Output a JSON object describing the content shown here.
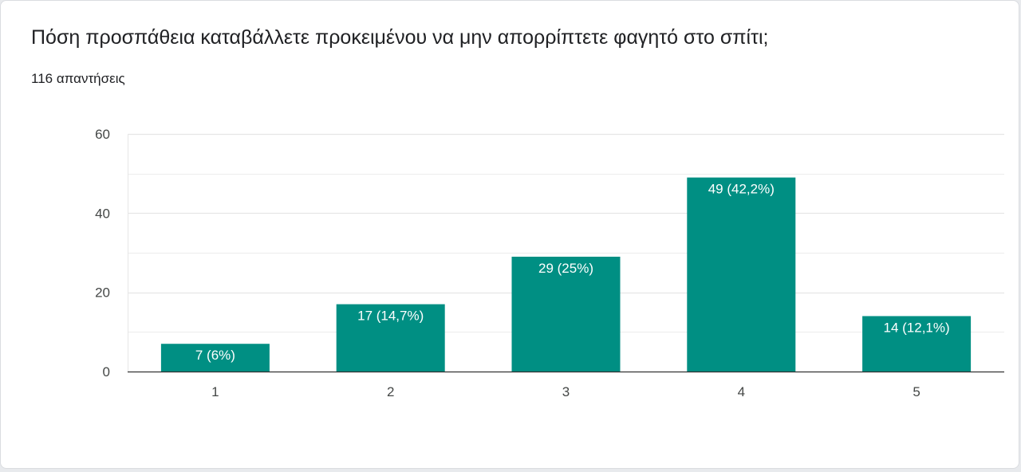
{
  "question": {
    "title": "Πόση προσπάθεια καταβάλλετε προκειμένου να μην απορρίπτετε φαγητό στο σπίτι;",
    "response_count": "116 απαντήσεις"
  },
  "colors": {
    "bar": "#008f83",
    "gridline": "#e6e6e6",
    "axis": "#333333"
  },
  "chart_data": {
    "type": "bar",
    "title": "",
    "xlabel": "",
    "ylabel": "",
    "categories": [
      "1",
      "2",
      "3",
      "4",
      "5"
    ],
    "values": [
      7,
      17,
      29,
      49,
      14
    ],
    "data_labels": [
      "7 (6%)",
      "17 (14,7%)",
      "29 (25%)",
      "49 (42,2%)",
      "14 (12,1%)"
    ],
    "ylim": [
      0,
      60
    ],
    "yticks": [
      "0",
      "20",
      "40",
      "60"
    ],
    "grid": true,
    "legend": "none"
  }
}
